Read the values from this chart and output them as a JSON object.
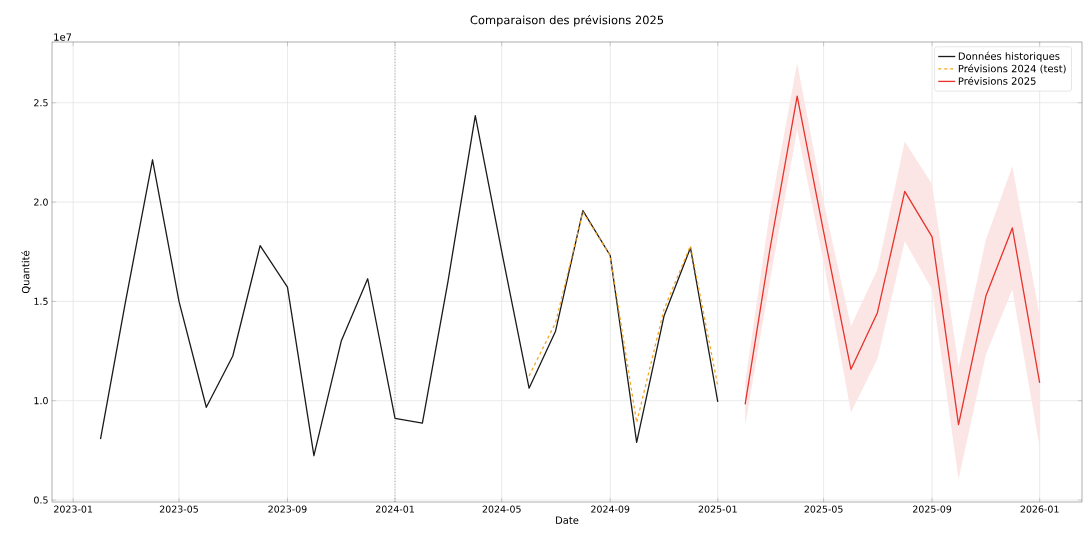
{
  "chart_data": {
    "type": "line",
    "title": "Comparaison des prévisions 2025",
    "xlabel": "Date",
    "ylabel": "Quantité",
    "annotations": [
      "1e7"
    ],
    "series": [
      {
        "name": "Données historiques",
        "color": "#1a1a1a",
        "line_style": "solid",
        "x": [
          "2023-02",
          "2023-03",
          "2023-04",
          "2023-05",
          "2023-06",
          "2023-07",
          "2023-08",
          "2023-09",
          "2023-10",
          "2023-11",
          "2023-12",
          "2024-01",
          "2024-02",
          "2024-03",
          "2024-04",
          "2024-05",
          "2024-06",
          "2024-07",
          "2024-08",
          "2024-09",
          "2024-10",
          "2024-11",
          "2024-12",
          "2025-01"
        ],
        "values": [
          0.806,
          1.49,
          2.213,
          1.5,
          0.967,
          1.225,
          1.781,
          1.572,
          0.723,
          1.3,
          1.614,
          0.911,
          0.887,
          1.6,
          2.435,
          1.75,
          1.063,
          1.35,
          1.957,
          1.731,
          0.79,
          1.426,
          1.77,
          0.994
        ]
      },
      {
        "name": "Prévisions 2024 (test)",
        "color": "#f5a623",
        "line_style": "dashed",
        "x": [
          "2024-06",
          "2024-07",
          "2024-08",
          "2024-09",
          "2024-10",
          "2024-11",
          "2024-12",
          "2025-01"
        ],
        "values": [
          1.125,
          1.393,
          1.95,
          1.73,
          0.89,
          1.46,
          1.78,
          1.074
        ]
      },
      {
        "name": "Prévisions 2025",
        "color": "#e8312a",
        "line_style": "solid",
        "x": [
          "2025-02",
          "2025-03",
          "2025-04",
          "2025-05",
          "2025-06",
          "2025-07",
          "2025-08",
          "2025-09",
          "2025-10",
          "2025-11",
          "2025-12",
          "2026-01"
        ],
        "values": [
          0.982,
          1.76,
          2.533,
          1.85,
          1.158,
          1.443,
          2.054,
          1.825,
          0.88,
          1.527,
          1.87,
          1.09
        ],
        "upper": [
          1.09,
          1.95,
          2.7,
          2.0,
          1.376,
          1.66,
          2.305,
          2.09,
          1.175,
          1.81,
          2.18,
          1.426
        ],
        "lower": [
          0.873,
          1.6,
          2.364,
          1.7,
          0.94,
          1.21,
          1.803,
          1.56,
          0.605,
          1.233,
          1.56,
          0.765
        ]
      }
    ],
    "xlim": [
      "2022-12-08",
      "2026-02-18"
    ],
    "xticks": [
      "2023-01",
      "2023-05",
      "2023-09",
      "2024-01",
      "2024-05",
      "2024-09",
      "2025-01",
      "2025-05",
      "2025-09",
      "2026-01"
    ],
    "ylim": [
      0.49,
      2.806
    ],
    "yticks": [
      {
        "value": 0.5,
        "label": "0.5"
      },
      {
        "value": 1.0,
        "label": "1.0"
      },
      {
        "value": 1.5,
        "label": "1.5"
      },
      {
        "value": 2.0,
        "label": "2.0"
      },
      {
        "value": 2.5,
        "label": "2.5"
      }
    ],
    "ref_lines": [
      {
        "axis": "x",
        "value": "2024-01",
        "color": "#999999",
        "line_style": "dotted"
      }
    ],
    "grid": true,
    "legend": "top right",
    "marker": "none"
  }
}
